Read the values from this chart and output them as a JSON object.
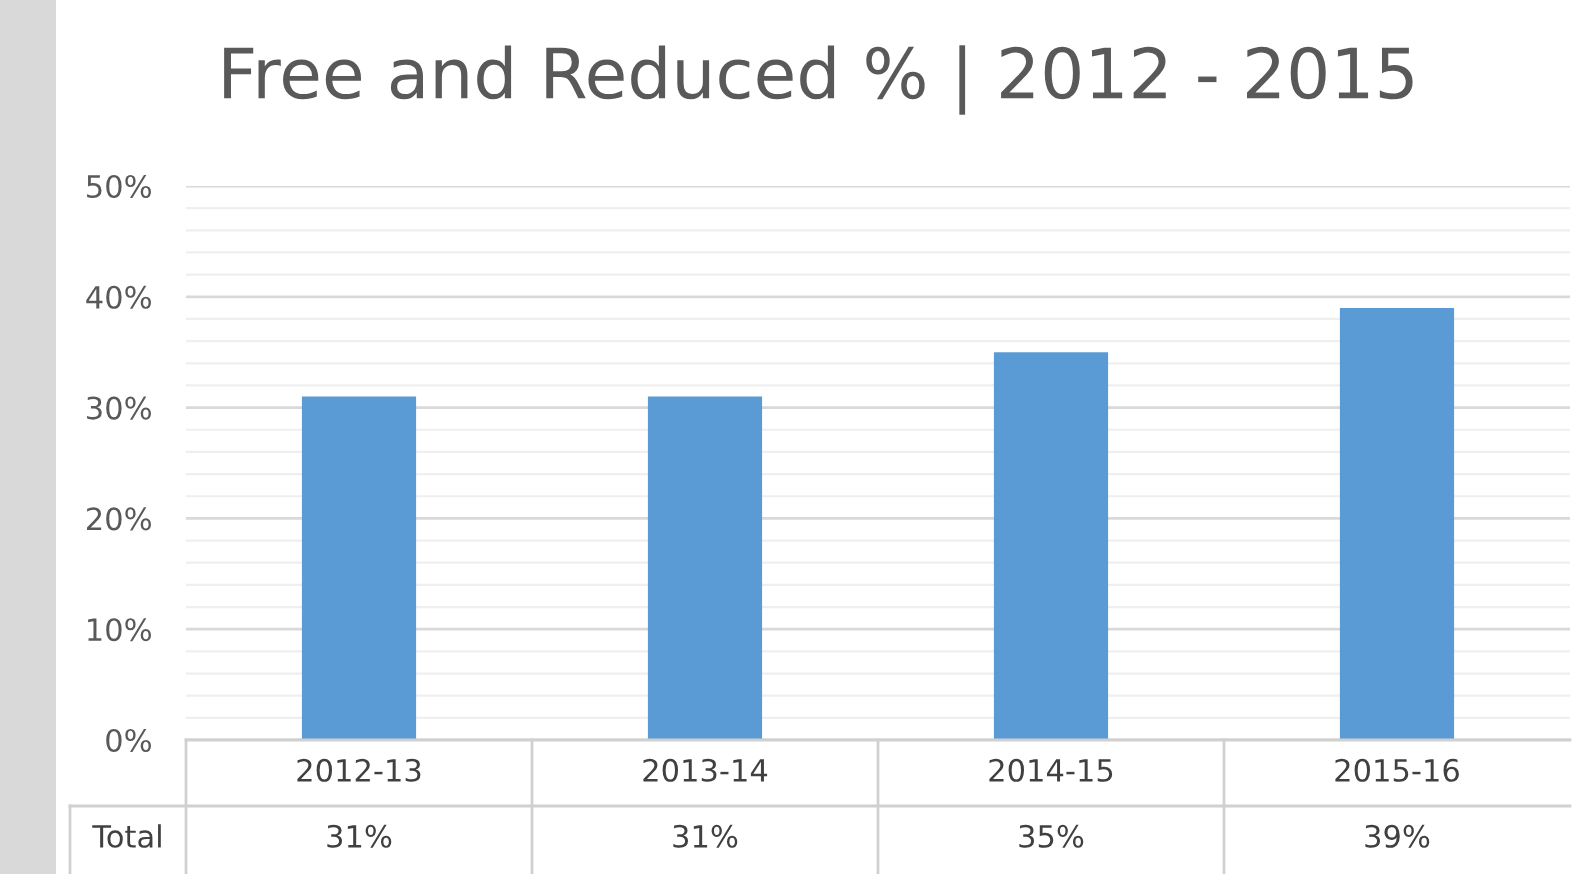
{
  "chart_data": {
    "type": "bar",
    "title": "Free and Reduced % | 2012 - 2015",
    "categories": [
      "2012-13",
      "2013-14",
      "2014-15",
      "2015-16"
    ],
    "series": [
      {
        "name": "Total",
        "color": "#5b9bd5",
        "values": [
          31,
          31,
          35,
          39
        ],
        "value_labels": [
          "31%",
          "31%",
          "35%",
          "39%"
        ]
      }
    ],
    "ylim": [
      0,
      50
    ],
    "yticks": [
      {
        "value": 0,
        "label": "0%"
      },
      {
        "value": 2,
        "label": null
      },
      {
        "value": 4,
        "label": null
      },
      {
        "value": 6,
        "label": null
      },
      {
        "value": 8,
        "label": null
      },
      {
        "value": 10,
        "label": "10%"
      },
      {
        "value": 12,
        "label": null
      },
      {
        "value": 14,
        "label": null
      },
      {
        "value": 16,
        "label": null
      },
      {
        "value": 18,
        "label": null
      },
      {
        "value": 20,
        "label": "20%"
      },
      {
        "value": 22,
        "label": null
      },
      {
        "value": 24,
        "label": null
      },
      {
        "value": 26,
        "label": null
      },
      {
        "value": 28,
        "label": null
      },
      {
        "value": 30,
        "label": "30%"
      },
      {
        "value": 32,
        "label": null
      },
      {
        "value": 34,
        "label": null
      },
      {
        "value": 36,
        "label": null
      },
      {
        "value": 38,
        "label": null
      },
      {
        "value": 40,
        "label": "40%"
      },
      {
        "value": 42,
        "label": null
      },
      {
        "value": 44,
        "label": null
      },
      {
        "value": 46,
        "label": null
      },
      {
        "value": 48,
        "label": null
      },
      {
        "value": 50,
        "label": "50%"
      }
    ],
    "grid": "y",
    "legend": false
  }
}
